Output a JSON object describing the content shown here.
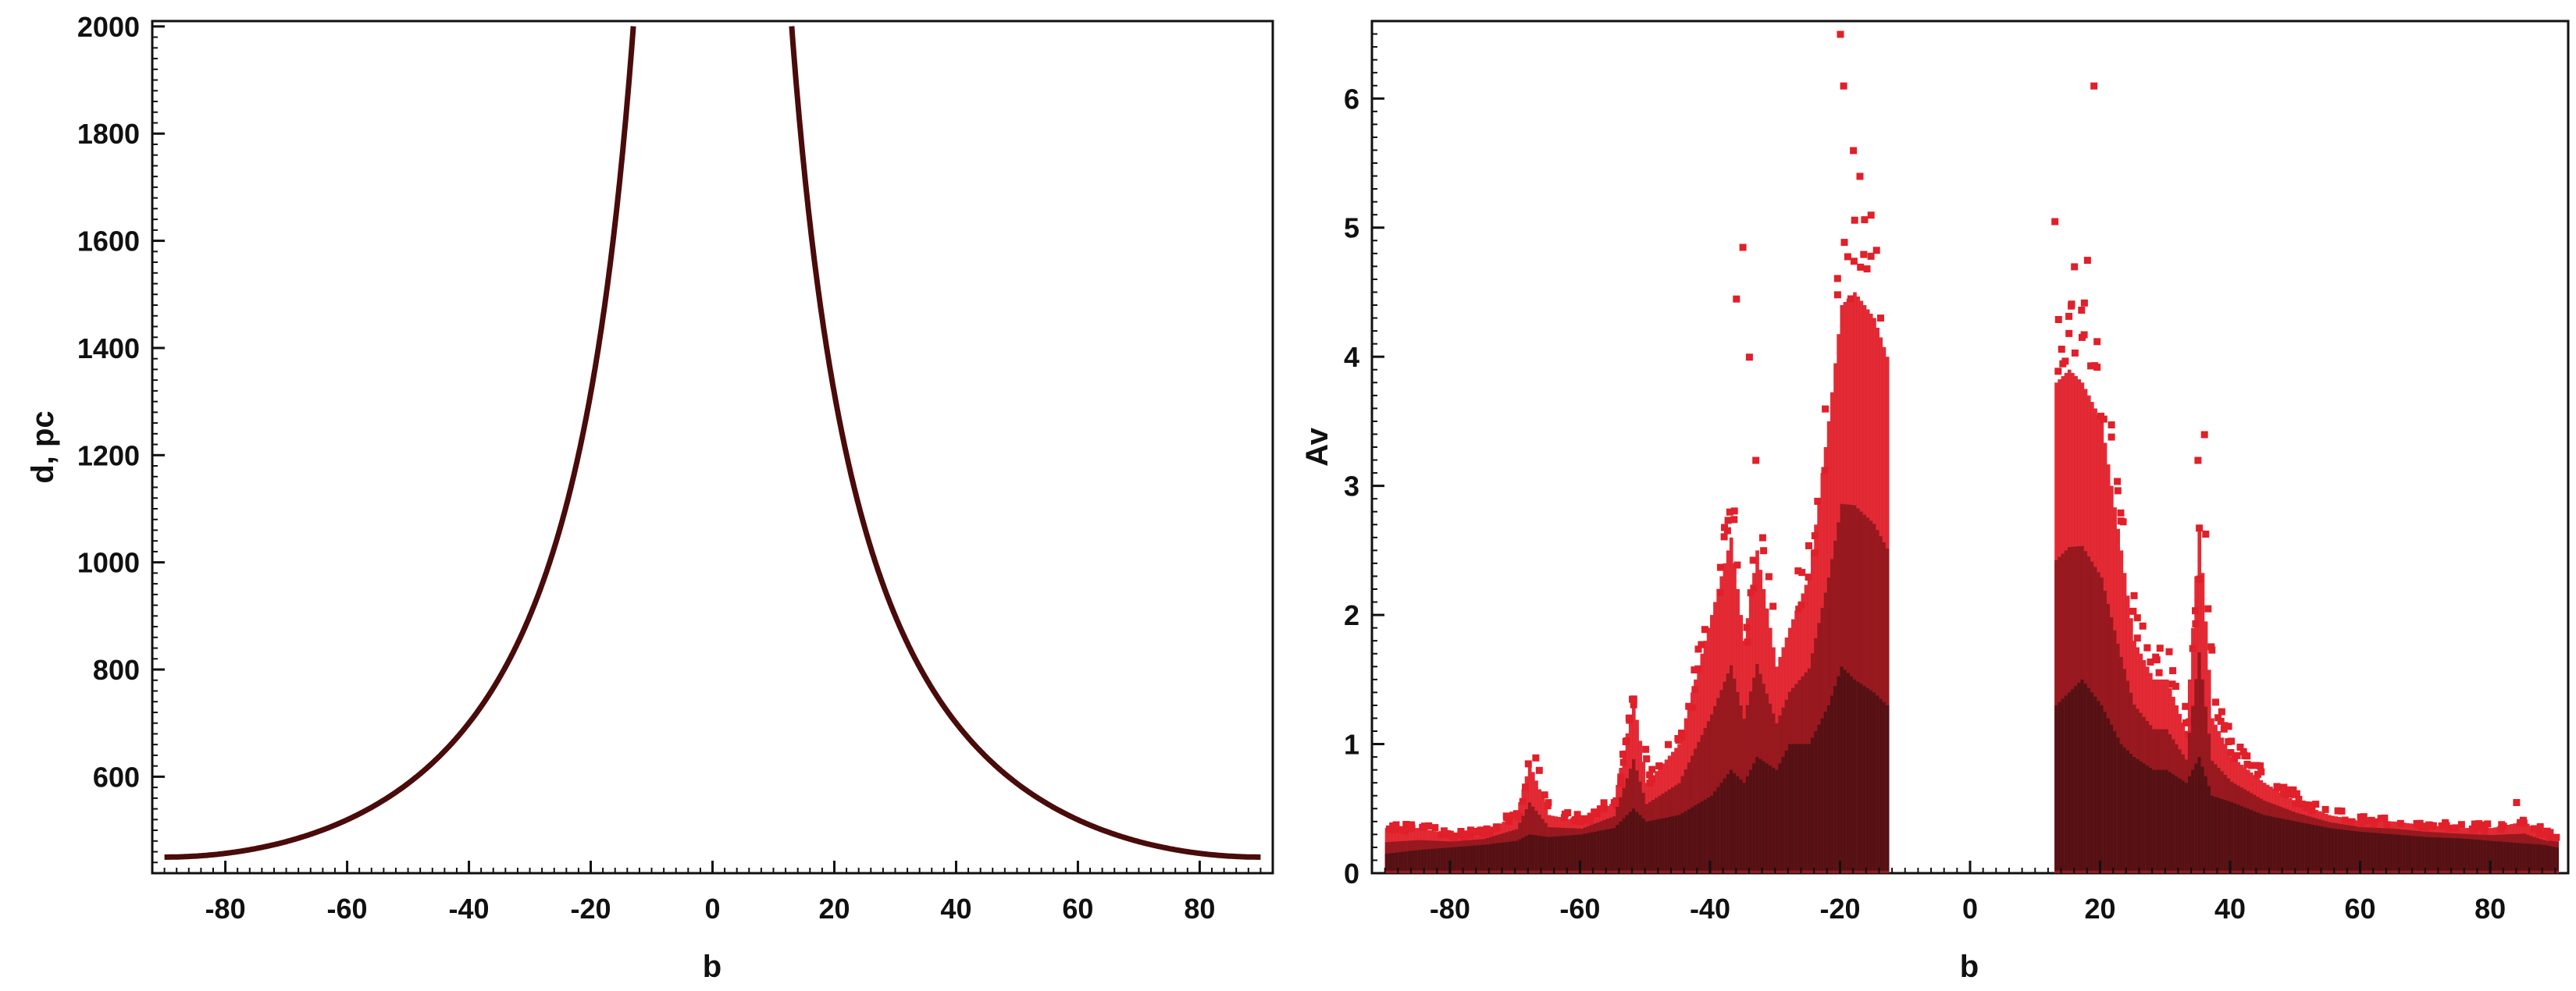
{
  "colors": {
    "curve": "#4a0b0b",
    "scatter_light": "#e0202a",
    "scatter_dark": "#2a0d0d",
    "axis": "#111111",
    "background": "#ffffff"
  },
  "chart_data": [
    {
      "type": "line",
      "title": "",
      "xlabel": "b",
      "ylabel": "d, pc",
      "xlim": [
        -92,
        92
      ],
      "ylim": [
        420,
        2010
      ],
      "xticks": [
        -80,
        -60,
        -40,
        -20,
        0,
        20,
        40,
        60,
        80
      ],
      "xtick_labels": [
        "-80",
        "-60",
        "-40",
        "-20",
        "0",
        "20",
        "40",
        "60",
        "80"
      ],
      "yticks": [
        600,
        800,
        1000,
        1200,
        1400,
        1600,
        1800,
        2000
      ],
      "ytick_labels": [
        "600",
        "800",
        "1000",
        "1200",
        "1400",
        "1600",
        "1800",
        "2000"
      ],
      "grid": false,
      "series": [
        {
          "description_of_shape": "d = 450 / sin|b|",
          "x": [
            -90,
            -85,
            -80,
            -75,
            -70,
            -65,
            -60,
            -55,
            -50,
            -45,
            -40,
            -35,
            -30,
            -25,
            -20,
            -18,
            -16,
            -14,
            -13
          ],
          "y": [
            450,
            452,
            457,
            466,
            479,
            497,
            520,
            549,
            587,
            636,
            700,
            785,
            900,
            1065,
            1316,
            1456,
            1633,
            1860,
            2000
          ]
        },
        {
          "x": [
            13,
            14,
            16,
            18,
            20,
            25,
            30,
            35,
            40,
            45,
            50,
            55,
            60,
            65,
            70,
            75,
            80,
            85,
            90
          ],
          "y": [
            2000,
            1860,
            1633,
            1456,
            1316,
            1065,
            900,
            785,
            700,
            636,
            587,
            549,
            520,
            497,
            479,
            466,
            457,
            452,
            450
          ]
        }
      ]
    },
    {
      "type": "scatter",
      "title": "",
      "xlabel": "b",
      "ylabel": "Av",
      "xlim": [
        -92,
        92
      ],
      "ylim": [
        0,
        6.6
      ],
      "xticks": [
        -80,
        -60,
        -40,
        -20,
        0,
        20,
        40,
        60,
        80
      ],
      "xtick_labels": [
        "-80",
        "-60",
        "-40",
        "-20",
        "0",
        "20",
        "40",
        "60",
        "80"
      ],
      "yticks": [
        0,
        1,
        2,
        3,
        4,
        5,
        6
      ],
      "ytick_labels": [
        "0",
        "1",
        "2",
        "3",
        "4",
        "5",
        "6"
      ],
      "grid": false,
      "density_profile": {
        "b": [
          -90,
          -85,
          -80,
          -75,
          -70,
          -68,
          -65,
          -60,
          -55,
          -52,
          -50,
          -45,
          -40,
          -37,
          -35,
          -33,
          -30,
          -28,
          -25,
          -22,
          -20,
          -18,
          -15,
          -13,
          13,
          15,
          17,
          20,
          23,
          25,
          28,
          30,
          33,
          35,
          37,
          40,
          45,
          50,
          55,
          60,
          65,
          70,
          75,
          80,
          85,
          88,
          90
        ],
        "Av_core_max": [
          0.15,
          0.18,
          0.2,
          0.22,
          0.25,
          0.3,
          0.28,
          0.3,
          0.35,
          0.5,
          0.4,
          0.45,
          0.6,
          0.8,
          0.7,
          0.9,
          0.8,
          1.0,
          1.0,
          1.3,
          1.6,
          1.5,
          1.4,
          1.3,
          1.3,
          1.4,
          1.5,
          1.3,
          1.0,
          0.9,
          0.8,
          0.8,
          0.7,
          0.9,
          0.6,
          0.55,
          0.45,
          0.4,
          0.35,
          0.32,
          0.3,
          0.28,
          0.27,
          0.25,
          0.23,
          0.22,
          0.2
        ],
        "Av_envelope_max": [
          0.35,
          0.35,
          0.3,
          0.32,
          0.45,
          0.85,
          0.45,
          0.4,
          0.55,
          1.35,
          0.7,
          1.0,
          2.0,
          2.6,
          1.8,
          2.5,
          1.6,
          1.9,
          2.3,
          3.5,
          4.4,
          4.5,
          4.3,
          4.0,
          3.8,
          3.9,
          3.8,
          3.5,
          2.5,
          1.8,
          1.5,
          1.5,
          1.1,
          2.7,
          1.2,
          0.9,
          0.7,
          0.55,
          0.45,
          0.4,
          0.4,
          0.37,
          0.35,
          0.35,
          0.4,
          0.3,
          0.3
        ]
      },
      "outliers": {
        "b": [
          -35,
          -36,
          -34,
          -20,
          -19.5,
          -18,
          -17,
          -37,
          -31,
          13,
          16,
          18,
          19,
          36,
          35,
          84,
          -68,
          -52,
          -33
        ],
        "Av": [
          4.85,
          4.45,
          4.0,
          6.5,
          6.1,
          5.6,
          5.4,
          2.8,
          2.3,
          5.05,
          4.7,
          4.75,
          6.1,
          3.4,
          3.2,
          0.55,
          0.85,
          1.35,
          3.2
        ]
      }
    }
  ]
}
